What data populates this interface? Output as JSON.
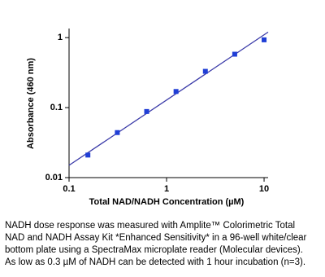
{
  "chart_data": {
    "type": "scatter",
    "x": [
      0.156,
      0.3125,
      0.625,
      1.25,
      2.5,
      5,
      10
    ],
    "values": [
      0.021,
      0.044,
      0.088,
      0.17,
      0.33,
      0.58,
      0.93
    ],
    "color": "#1f3ed6",
    "fit": {
      "x": [
        0.1,
        11
      ],
      "values": [
        0.015,
        1.2
      ],
      "color": "#3a3aa8"
    },
    "xlim": [
      0.1,
      11
    ],
    "ylim": [
      0.01,
      1.35
    ],
    "xticks": [
      0.1,
      1,
      10
    ],
    "yticks": [
      0.01,
      0.1,
      1
    ],
    "log_x": true,
    "log_y": true,
    "xlabel": "Total NAD/NADH Concentration (µM)",
    "ylabel": "Absorbance (460 nm)",
    "caption": [
      "NADH dose response was measured with Amplite™ Colorimetric Total",
      "NAD and NADH Assay Kit *Enhanced Sensitivity* in a 96-well white/clear",
      "bottom plate using  a SpectraMax microplate reader (Molecular devices).",
      "As low as 0.3 µM of NADH can be detected with 1 hour incubation (n=3)."
    ]
  }
}
